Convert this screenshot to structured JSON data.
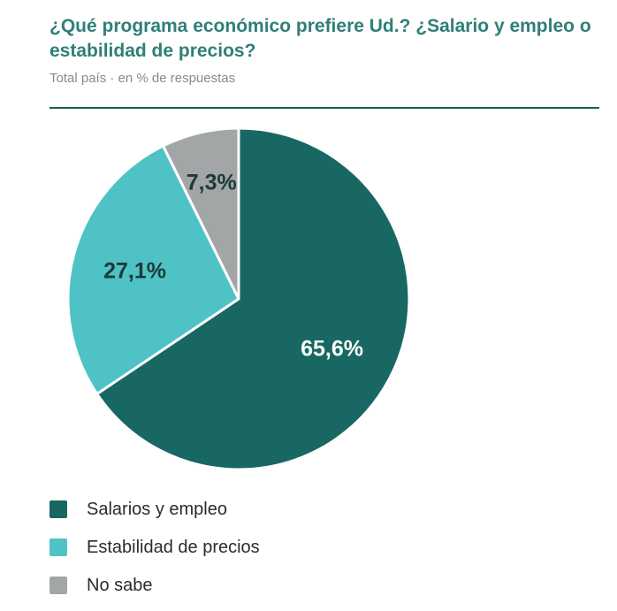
{
  "header": {
    "title": "¿Qué programa económico prefiere Ud.? ¿Salario y empleo o estabilidad de precios?",
    "subtitle": "Total país · en % de respuestas"
  },
  "chart_data": {
    "type": "pie",
    "title": "¿Qué programa económico prefiere Ud.? ¿Salario y empleo o estabilidad de precios?",
    "subtitle": "Total país · en % de respuestas",
    "legend_position": "bottom-left",
    "slices": [
      {
        "name": "Salarios y empleo",
        "value": 65.6,
        "label": "65,6%",
        "color": "#186763",
        "label_color": "#ffffff"
      },
      {
        "name": "Estabilidad de precios",
        "value": 27.1,
        "label": "27,1%",
        "color": "#4fc2c6",
        "label_color": "#1b3a38"
      },
      {
        "name": "No sabe",
        "value": 7.3,
        "label": "7,3%",
        "color": "#a3a6a6",
        "label_color": "#1b3a38"
      }
    ]
  }
}
